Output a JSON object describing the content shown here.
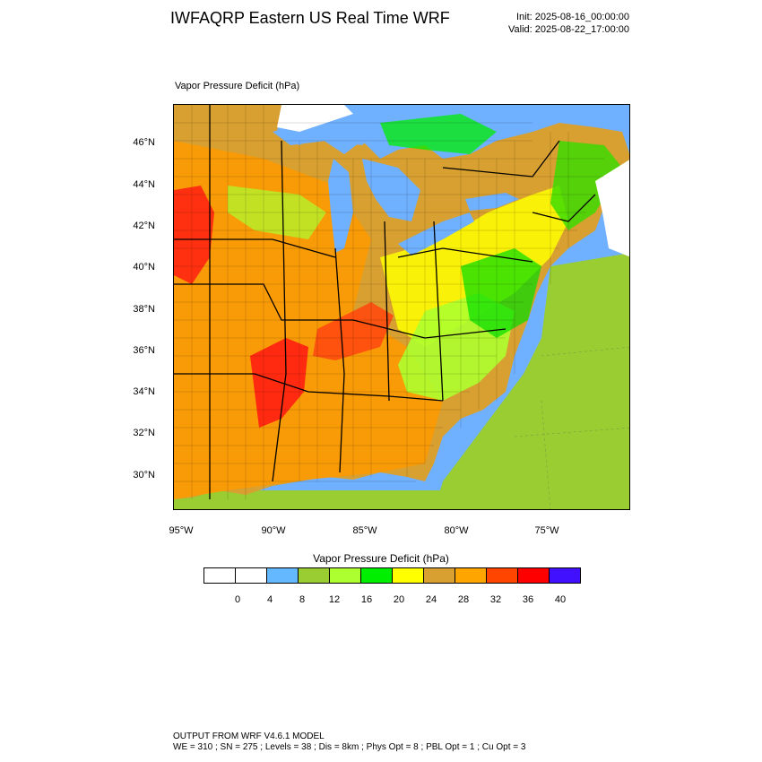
{
  "header": {
    "title": "IWFAQRP Eastern US Real Time WRF",
    "init": "Init: 2025-08-16_00:00:00",
    "valid": "Valid: 2025-08-22_17:00:00"
  },
  "map": {
    "title": "Vapor Pressure Deficit   (hPa)",
    "lat_labels": [
      "46°N",
      "44°N",
      "42°N",
      "40°N",
      "38°N",
      "36°N",
      "34°N",
      "32°N",
      "30°N"
    ],
    "lon_labels": [
      "95°W",
      "90°W",
      "85°W",
      "80°W",
      "75°W"
    ],
    "colors": {
      "water": "#6fb0ff",
      "ocean_land_green": "#9acd32",
      "red": "#ff1a1a",
      "orange": "#ff9900",
      "tan": "#d2a030",
      "yellow": "#ffff00",
      "green": "#00ee00"
    }
  },
  "colorbar": {
    "title": "Vapor Pressure Deficit   (hPa)",
    "colors": [
      "#ffffff",
      "#ffffff",
      "#63b8ff",
      "#9acd32",
      "#adff2f",
      "#00ee00",
      "#ffff00",
      "#d8a030",
      "#ffa500",
      "#ff4500",
      "#ff0000",
      "#4010ff"
    ],
    "ticks": [
      "0",
      "4",
      "8",
      "12",
      "16",
      "20",
      "24",
      "28",
      "32",
      "36",
      "40"
    ]
  },
  "footer": {
    "line1": "OUTPUT FROM WRF V4.6.1 MODEL",
    "line2": "WE = 310 ; SN = 275 ; Levels = 38 ; Dis = 8km ; Phys Opt = 8 ; PBL Opt = 1 ; Cu Opt = 3"
  }
}
